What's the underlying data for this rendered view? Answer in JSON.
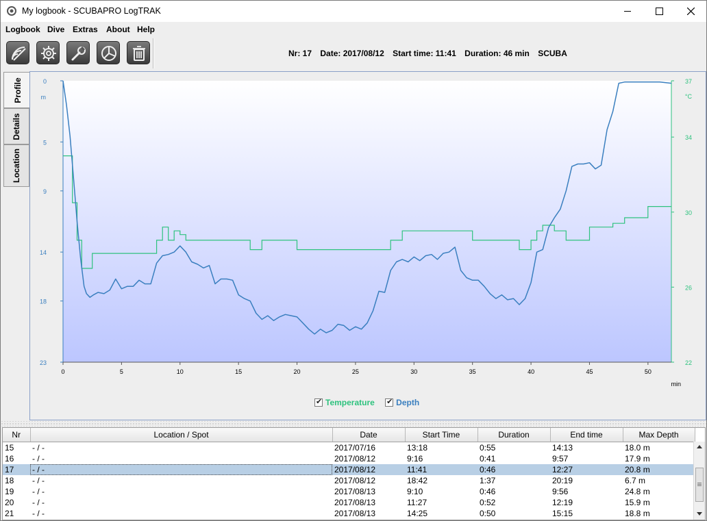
{
  "window": {
    "title": "My logbook - SCUBAPRO LogTRAK"
  },
  "menu": [
    "Logbook",
    "Dive",
    "Extras",
    "About",
    "Help"
  ],
  "toolbar": {
    "buttons": [
      "download-icon",
      "settings-gear-icon",
      "wrench-icon",
      "statistics-pie-icon",
      "trash-icon"
    ]
  },
  "dive_summary": {
    "nr": "Nr: 17",
    "date": "Date: 2017/08/12",
    "start_time": "Start time: 11:41",
    "duration": "Duration: 46 min",
    "type": "SCUBA"
  },
  "side_tabs": [
    "Profile",
    "Details",
    "Location"
  ],
  "colors": {
    "depth": "#3a7fbf",
    "temperature": "#2ec27e",
    "plot_top": "#ffffff",
    "plot_bottom": "#bcc6ff"
  },
  "legend": {
    "temperature": "Temperature",
    "depth": "Depth"
  },
  "chart_data": {
    "type": "line",
    "x_unit": "min",
    "xlim": [
      0,
      52
    ],
    "x_ticks": [
      0,
      5,
      10,
      15,
      20,
      25,
      30,
      35,
      40,
      45,
      50
    ],
    "depth_unit": "m",
    "depth_ticks": [
      0,
      5,
      9,
      14,
      18,
      23
    ],
    "depth_lim": [
      0,
      23
    ],
    "temp_unit": "°C",
    "temp_ticks": [
      37,
      34,
      30,
      26,
      22
    ],
    "temp_lim": [
      22,
      37
    ],
    "grid": true,
    "series": [
      {
        "name": "Depth",
        "x": [
          0,
          0.3,
          0.6,
          0.9,
          1.2,
          1.5,
          1.8,
          2.0,
          2.3,
          2.6,
          3.0,
          3.5,
          4.0,
          4.5,
          5.0,
          5.5,
          6.0,
          6.5,
          7.0,
          7.5,
          8.0,
          8.5,
          9.0,
          9.5,
          10.0,
          10.5,
          11.0,
          11.5,
          12.0,
          12.5,
          13.0,
          13.5,
          14.0,
          14.5,
          15.0,
          15.5,
          16.0,
          16.5,
          17.0,
          17.5,
          18.0,
          18.5,
          19.0,
          19.5,
          20.0,
          20.5,
          21.0,
          21.5,
          22.0,
          22.5,
          23.0,
          23.5,
          24.0,
          24.5,
          25.0,
          25.5,
          26.0,
          26.5,
          27.0,
          27.5,
          28.0,
          28.5,
          29.0,
          29.5,
          30.0,
          30.5,
          31.0,
          31.5,
          32.0,
          32.5,
          33.0,
          33.5,
          34.0,
          34.5,
          35.0,
          35.5,
          36.0,
          36.5,
          37.0,
          37.5,
          38.0,
          38.5,
          39.0,
          39.5,
          40.0,
          40.5,
          41.0,
          41.5,
          42.0,
          42.5,
          43.0,
          43.5,
          44.0,
          44.5,
          45.0,
          45.5,
          46.0,
          46.5,
          47.0,
          47.5,
          48.0,
          49.0,
          50.0,
          51.0,
          52.0
        ],
        "y": [
          0,
          2.0,
          4.5,
          8.0,
          11.5,
          14.5,
          16.8,
          17.4,
          17.7,
          17.5,
          17.3,
          17.4,
          17.1,
          16.2,
          17.0,
          16.8,
          16.8,
          16.3,
          16.6,
          16.6,
          14.9,
          14.3,
          14.2,
          14.0,
          13.5,
          14.0,
          14.8,
          15.0,
          15.3,
          15.1,
          16.6,
          16.2,
          16.2,
          16.3,
          17.5,
          17.8,
          18.0,
          19.0,
          19.5,
          19.2,
          19.6,
          19.3,
          19.1,
          19.2,
          19.3,
          19.8,
          20.3,
          20.7,
          20.3,
          20.6,
          20.4,
          19.9,
          20.0,
          20.4,
          20.1,
          20.3,
          19.8,
          18.8,
          17.2,
          17.3,
          15.5,
          14.8,
          14.6,
          14.8,
          14.4,
          14.7,
          14.3,
          14.2,
          14.6,
          14.1,
          14.0,
          13.6,
          15.5,
          16.1,
          16.3,
          16.3,
          16.8,
          17.4,
          17.8,
          17.5,
          17.9,
          17.8,
          18.3,
          17.8,
          16.5,
          14.0,
          13.8,
          12.0,
          11.2,
          10.5,
          9.0,
          7.0,
          6.8,
          6.8,
          6.7,
          7.2,
          6.9,
          4.0,
          2.5,
          0.2,
          0.1,
          0.1,
          0.1,
          0.1,
          0.2
        ]
      },
      {
        "name": "Temperature",
        "x": [
          0,
          0.4,
          0.8,
          1.2,
          1.6,
          2.0,
          2.5,
          3.0,
          4.0,
          5.0,
          6.0,
          7.0,
          8.0,
          8.5,
          9.0,
          9.5,
          10.0,
          10.5,
          11.0,
          12.0,
          13.0,
          14.0,
          15.0,
          16.0,
          17.0,
          18.0,
          19.0,
          20.0,
          21.0,
          22.0,
          23.0,
          24.0,
          25.0,
          26.0,
          27.0,
          28.0,
          29.0,
          30.0,
          31.0,
          32.0,
          33.0,
          34.0,
          35.0,
          36.0,
          37.0,
          38.0,
          39.0,
          40.0,
          40.5,
          41.0,
          42.0,
          43.0,
          44.0,
          45.0,
          46.0,
          47.0,
          48.0,
          49.0,
          50.0,
          51.0,
          52.0
        ],
        "y": [
          33.0,
          33.0,
          30.5,
          28.5,
          27.0,
          27.0,
          27.8,
          27.8,
          27.8,
          27.8,
          27.8,
          27.8,
          28.5,
          29.2,
          28.5,
          29.0,
          28.8,
          28.5,
          28.5,
          28.5,
          28.5,
          28.5,
          28.5,
          28.0,
          28.5,
          28.5,
          28.5,
          28.0,
          28.0,
          28.0,
          28.0,
          28.0,
          28.0,
          28.0,
          28.0,
          28.5,
          29.0,
          29.0,
          29.0,
          29.0,
          29.0,
          29.0,
          28.5,
          28.5,
          28.5,
          28.5,
          28.0,
          28.5,
          29.0,
          29.3,
          29.0,
          28.5,
          28.5,
          29.2,
          29.2,
          29.4,
          29.7,
          29.7,
          30.3,
          30.3,
          30.3
        ]
      }
    ]
  },
  "table": {
    "columns": [
      "Nr",
      "Location / Spot",
      "Date",
      "Start Time",
      "Duration",
      "End time",
      "Max Depth"
    ],
    "rows": [
      [
        "15",
        "- / -",
        "2017/07/16",
        "13:18",
        "0:55",
        "14:13",
        "18.0 m"
      ],
      [
        "16",
        "- / -",
        "2017/08/12",
        "9:16",
        "0:41",
        "9:57",
        "17.9 m"
      ],
      [
        "17",
        "- / -",
        "2017/08/12",
        "11:41",
        "0:46",
        "12:27",
        "20.8 m"
      ],
      [
        "18",
        "- / -",
        "2017/08/12",
        "18:42",
        "1:37",
        "20:19",
        "6.7 m"
      ],
      [
        "19",
        "- / -",
        "2017/08/13",
        "9:10",
        "0:46",
        "9:56",
        "24.8 m"
      ],
      [
        "20",
        "- / -",
        "2017/08/13",
        "11:27",
        "0:52",
        "12:19",
        "15.9 m"
      ],
      [
        "21",
        "- / -",
        "2017/08/13",
        "14:25",
        "0:50",
        "15:15",
        "18.8 m"
      ]
    ],
    "selected_row": 2
  }
}
